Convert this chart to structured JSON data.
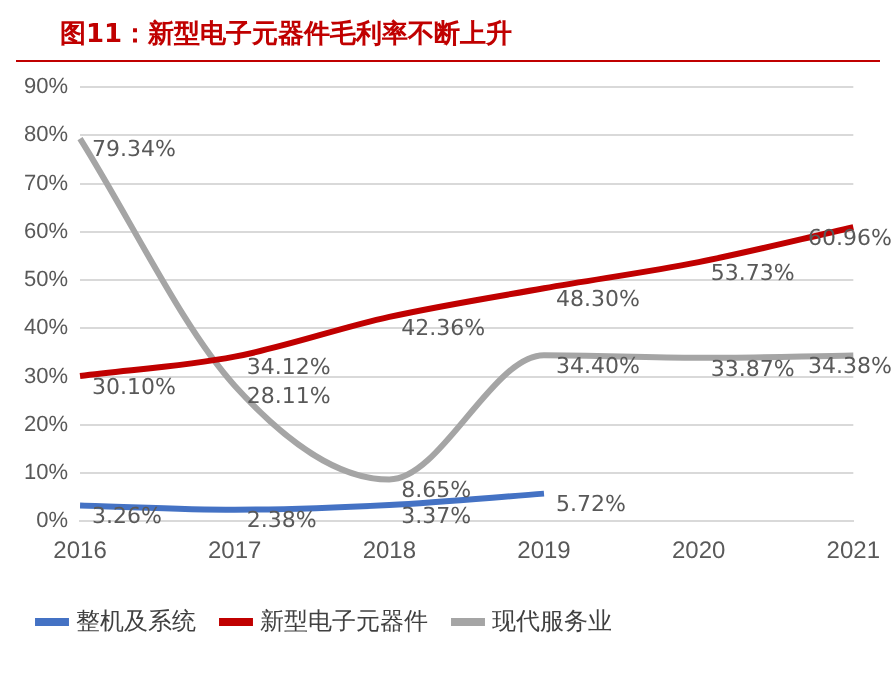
{
  "chart_data": {
    "type": "line",
    "title": "图11：新型电子元器件毛利率不断上升",
    "categories": [
      "2016",
      "2017",
      "2018",
      "2019",
      "2020",
      "2021"
    ],
    "series": [
      {
        "name": "整机及系统",
        "color": "#4472c4",
        "values": [
          3.26,
          2.38,
          3.37,
          5.72,
          null,
          null
        ],
        "value_labels": [
          "3.26%",
          "2.38%",
          "3.37%",
          "5.72%",
          null,
          null
        ]
      },
      {
        "name": "新型电子元器件",
        "color": "#c00000",
        "values": [
          30.1,
          34.12,
          42.36,
          48.3,
          53.73,
          60.96
        ],
        "value_labels": [
          "30.10%",
          "34.12%",
          "42.36%",
          "48.30%",
          "53.73%",
          "60.96%"
        ]
      },
      {
        "name": "现代服务业",
        "color": "#a5a5a5",
        "values": [
          79.34,
          28.11,
          8.65,
          34.4,
          33.87,
          34.38
        ],
        "value_labels": [
          "79.34%",
          "28.11%",
          "8.65%",
          "34.40%",
          "33.87%",
          "34.38%"
        ]
      }
    ],
    "ylim": [
      0,
      90
    ],
    "yticks": [
      {
        "value": 0,
        "label": "0%"
      },
      {
        "value": 10,
        "label": "10%"
      },
      {
        "value": 20,
        "label": "20%"
      },
      {
        "value": 30,
        "label": "30%"
      },
      {
        "value": 40,
        "label": "40%"
      },
      {
        "value": 50,
        "label": "50%"
      },
      {
        "value": 60,
        "label": "60%"
      },
      {
        "value": 70,
        "label": "70%"
      },
      {
        "value": 80,
        "label": "80%"
      },
      {
        "value": 90,
        "label": "90%"
      }
    ],
    "grid": "y",
    "legend": "bottom",
    "marker": "none",
    "line_style": "solid"
  }
}
